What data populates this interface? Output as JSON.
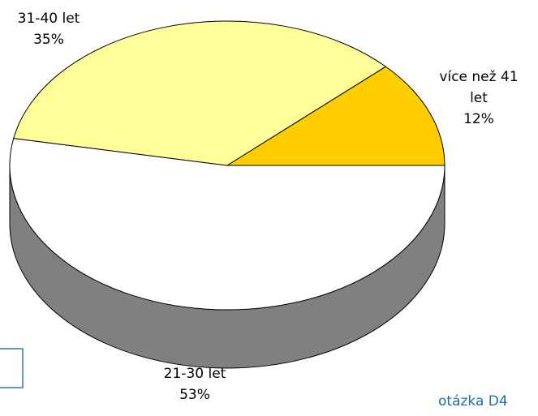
{
  "chart_data": {
    "type": "pie",
    "categories": [
      "21-30 let",
      "31-40 let",
      "více než 41 let"
    ],
    "values": [
      53,
      35,
      12
    ],
    "value_labels": [
      "53%",
      "35%",
      "12%"
    ],
    "colors": [
      "#ffffff",
      "#ffff99",
      "#ffcc00"
    ],
    "caption": "otázka D4"
  }
}
